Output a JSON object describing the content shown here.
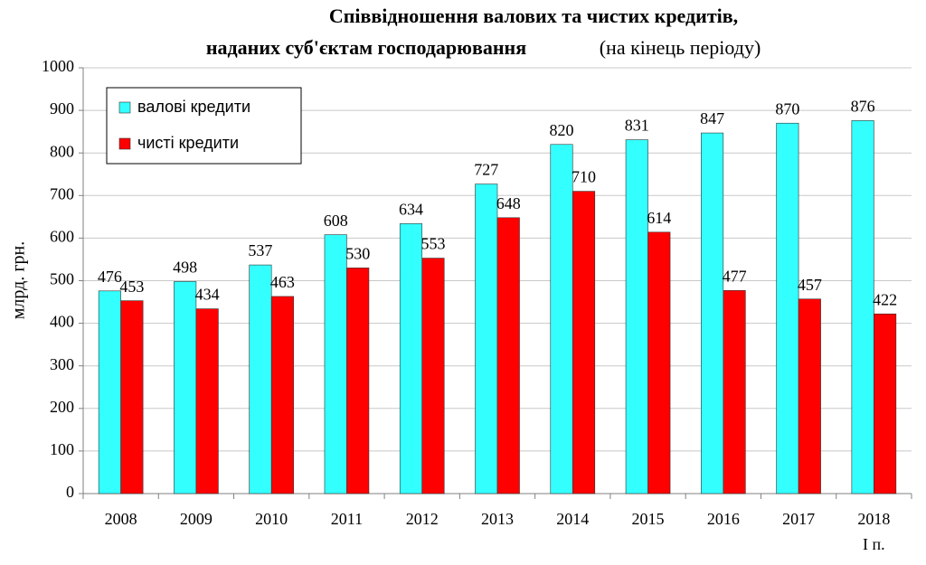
{
  "chart_data": {
    "type": "bar",
    "title": [
      "Співвідношення валових та чистих кредитів,",
      "наданих суб'єктам господарювання"
    ],
    "subtitle": "(на кінець періоду)",
    "y_label": "млрд. грн.",
    "categories": [
      "2008",
      "2009",
      "2010",
      "2011",
      "2012",
      "2013",
      "2014",
      "2015",
      "2016",
      "2017",
      "2018"
    ],
    "category_note": "І п.",
    "series": [
      {
        "name": "валові кредити",
        "color": "#33ffff",
        "values": [
          476,
          498,
          537,
          608,
          634,
          727,
          820,
          831,
          847,
          870,
          876
        ]
      },
      {
        "name": "чисті кредити",
        "color": "#ff0000",
        "values": [
          453,
          434,
          463,
          530,
          553,
          648,
          710,
          614,
          477,
          457,
          422
        ]
      }
    ],
    "ylim": [
      0,
      1000
    ],
    "yticks": [
      0,
      100,
      200,
      300,
      400,
      500,
      600,
      700,
      800,
      900,
      1000
    ],
    "grid": true,
    "legend": "upper left"
  }
}
